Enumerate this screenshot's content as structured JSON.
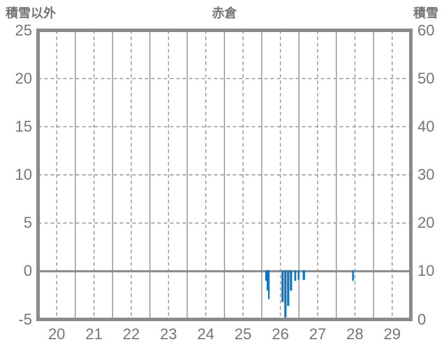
{
  "header": {
    "left_axis_title": "積雪以外",
    "chart_title": "赤倉",
    "right_axis_title": "積雪"
  },
  "colors": {
    "bar": "#0e76bd",
    "border": "#8a8a8a",
    "grid": "#919191",
    "zero_line": "#8a8a8a",
    "text": "#757575",
    "background": "#ffffff"
  },
  "chart_data": {
    "type": "bar",
    "title": "赤倉",
    "left_axis": {
      "title": "積雪以外",
      "min": -5,
      "max": 25,
      "ticks": [
        25,
        20,
        15,
        10,
        5,
        0,
        -5
      ],
      "dashed_gridlines": [
        20,
        15,
        10,
        5
      ],
      "zero_line_value": 0
    },
    "right_axis": {
      "title": "積雪",
      "min": 0,
      "max": 60,
      "ticks": [
        60,
        50,
        40,
        30,
        20,
        10,
        0
      ]
    },
    "x_axis": {
      "min": 20,
      "max": 30,
      "ticks": [
        20,
        21,
        22,
        23,
        24,
        25,
        26,
        27,
        28,
        29
      ],
      "solid_lines_at_day_boundaries": true,
      "dashed_lines_at_day_centers": true
    },
    "legend": "none",
    "grid": "on",
    "bars_note": "bars hang downward from the zero line",
    "bars": [
      {
        "day_pos": 26.095,
        "width": 0.038,
        "value": -1.0
      },
      {
        "day_pos": 26.133,
        "width": 0.038,
        "value": -2.0
      },
      {
        "day_pos": 26.171,
        "width": 0.041,
        "value": -2.9
      },
      {
        "day_pos": 26.53,
        "width": 0.06,
        "value": -3.2
      },
      {
        "day_pos": 26.605,
        "width": 0.06,
        "value": -4.8
      },
      {
        "day_pos": 26.68,
        "width": 0.06,
        "value": -3.6
      },
      {
        "day_pos": 26.755,
        "width": 0.06,
        "value": -2.0
      },
      {
        "day_pos": 26.875,
        "width": 0.05,
        "value": -1.0
      },
      {
        "day_pos": 26.968,
        "width": 0.045,
        "value": -0.9
      },
      {
        "day_pos": 27.1,
        "width": 0.06,
        "value": -0.9
      },
      {
        "day_pos": 28.425,
        "width": 0.047,
        "value": -1.0
      }
    ]
  }
}
